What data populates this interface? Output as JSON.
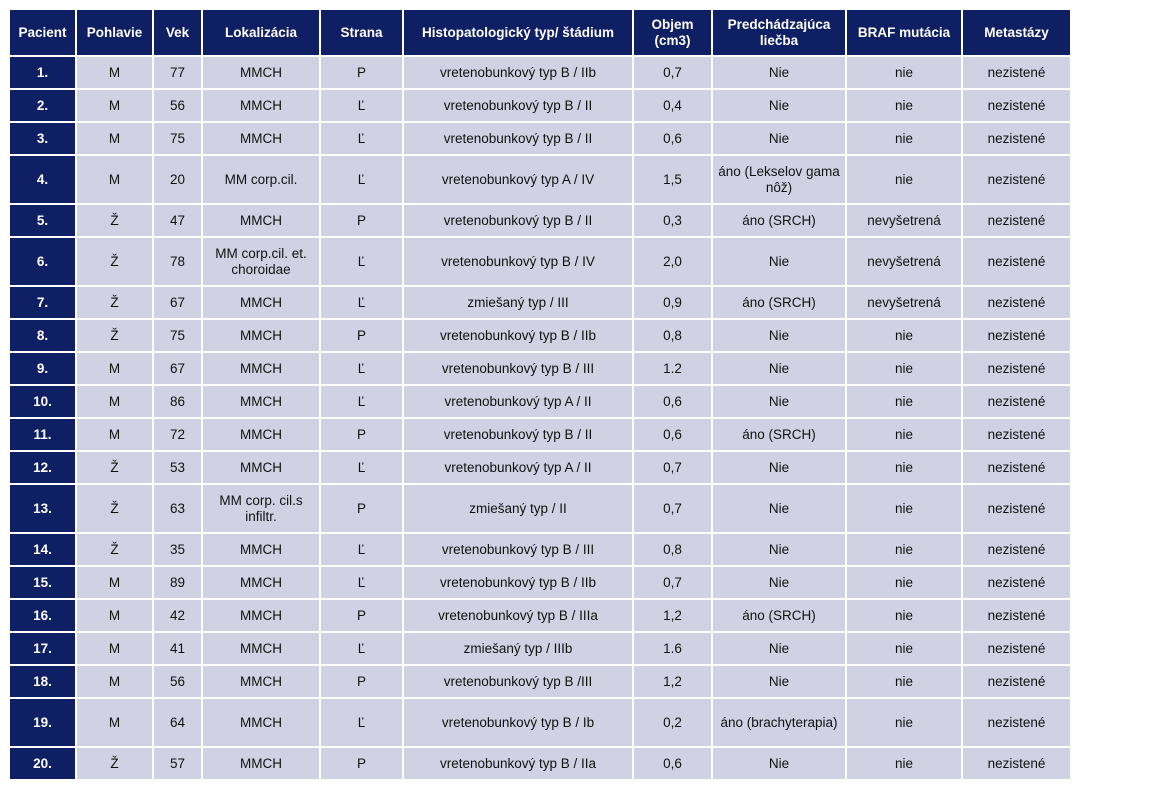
{
  "colors": {
    "header_bg": "#0f1f63",
    "row_bg": "#d0d2e4",
    "header_text": "#ffffff"
  },
  "table": {
    "headers": [
      "Pacient",
      "Pohlavie",
      "Vek",
      "Lokalizácia",
      "Strana",
      "Histopatologický typ/ štádium",
      "Objem (cm3)",
      "Predchádzajúca liečba",
      "BRAF mutácia",
      "Metastázy"
    ],
    "rows": [
      [
        "1.",
        "M",
        "77",
        "MMCH",
        "P",
        "vretenobunkový typ B /  IIb",
        "0,7",
        "Nie",
        "nie",
        "nezistené"
      ],
      [
        "2.",
        "M",
        "56",
        "MMCH",
        "Ľ",
        "vretenobunkový typ B /  II",
        "0,4",
        "Nie",
        "nie",
        "nezistené"
      ],
      [
        "3.",
        "M",
        "75",
        "MMCH",
        "Ľ",
        "vretenobunkový typ B / II",
        "0,6",
        "Nie",
        "nie",
        "nezistené"
      ],
      [
        "4.",
        "M",
        "20",
        "MM corp.cil.",
        "Ľ",
        "vretenobunkový typ A / IV",
        "1,5",
        "áno (Lekselov gama nôž)",
        "nie",
        "nezistené"
      ],
      [
        "5.",
        "Ž",
        "47",
        "MMCH",
        "P",
        "vretenobunkový typ B / II",
        "0,3",
        "áno (SRCH)",
        "nevyšetrená",
        "nezistené"
      ],
      [
        "6.",
        "Ž",
        "78",
        "MM corp.cil. et. choroidae",
        "Ľ",
        "vretenobunkový typ B / IV",
        "2,0",
        "Nie",
        "nevyšetrená",
        "nezistené"
      ],
      [
        "7.",
        "Ž",
        "67",
        "MMCH",
        "Ľ",
        "zmiešaný typ / III",
        "0,9",
        "áno (SRCH)",
        "nevyšetrená",
        "nezistené"
      ],
      [
        "8.",
        "Ž",
        "75",
        "MMCH",
        "P",
        "vretenobunkový typ B / IIb",
        "0,8",
        "Nie",
        "nie",
        "nezistené"
      ],
      [
        "9.",
        "M",
        "67",
        "MMCH",
        "Ľ",
        "vretenobunkový typ B / III",
        "1.2",
        "Nie",
        "nie",
        "nezistené"
      ],
      [
        "10.",
        "M",
        "86",
        "MMCH",
        "Ľ",
        "vretenobunkový typ A / II",
        "0,6",
        "Nie",
        "nie",
        "nezistené"
      ],
      [
        "11.",
        "M",
        "72",
        "MMCH",
        "P",
        "vretenobunkový typ B / II",
        "0,6",
        "áno (SRCH)",
        "nie",
        "nezistené"
      ],
      [
        "12.",
        "Ž",
        "53",
        "MMCH",
        "Ľ",
        "vretenobunkový typ A / II",
        "0,7",
        "Nie",
        "nie",
        "nezistené"
      ],
      [
        "13.",
        "Ž",
        "63",
        "MM corp. cil.s infiltr.",
        "P",
        "zmiešaný typ / II",
        "0,7",
        "Nie",
        "nie",
        "nezistené"
      ],
      [
        "14.",
        "Ž",
        "35",
        "MMCH",
        "Ľ",
        "vretenobunkový typ B / III",
        "0,8",
        "Nie",
        "nie",
        "nezistené"
      ],
      [
        "15.",
        "M",
        "89",
        "MMCH",
        "Ľ",
        "vretenobunkový typ B / IIb",
        "0,7",
        "Nie",
        "nie",
        "nezistené"
      ],
      [
        "16.",
        "M",
        "42",
        "MMCH",
        "P",
        "vretenobunkový typ B / IIIa",
        "1,2",
        "áno (SRCH)",
        "nie",
        "nezistené"
      ],
      [
        "17.",
        "M",
        "41",
        "MMCH",
        "Ľ",
        "zmiešaný typ / IIIb",
        "1.6",
        "Nie",
        "nie",
        "nezistené"
      ],
      [
        "18.",
        "M",
        "56",
        "MMCH",
        "P",
        "vretenobunkový typ B /III",
        "1,2",
        "Nie",
        "nie",
        "nezistené"
      ],
      [
        "19.",
        "M",
        "64",
        "MMCH",
        "Ľ",
        "vretenobunkový typ B / Ib",
        "0,2",
        "áno (brachyterapia)",
        "nie",
        "nezistené"
      ],
      [
        "20.",
        "Ž",
        "57",
        "MMCH",
        "P",
        "vretenobunkový typ B / IIa",
        "0,6",
        "Nie",
        "nie",
        "nezistené"
      ]
    ]
  }
}
